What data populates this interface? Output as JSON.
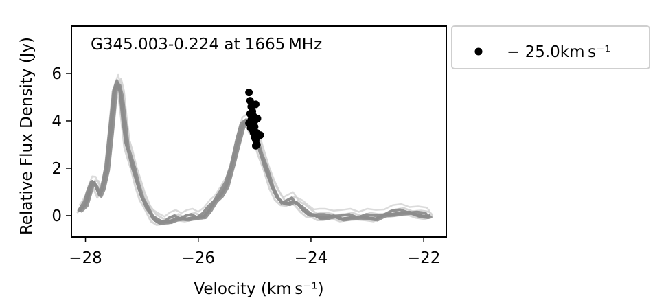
{
  "chart_data": {
    "type": "line",
    "title": "",
    "annotation": "G345.003-0.224 at 1665 MHz",
    "xlabel": "Velocity (km s⁻¹)",
    "ylabel": "Relative Flux Density (Jy)",
    "xlim": [
      -28.25,
      -21.6
    ],
    "ylim": [
      -0.9,
      8.0
    ],
    "xticks": [
      -28,
      -26,
      -24,
      -22
    ],
    "xtick_labels": [
      "−28",
      "−26",
      "−24",
      "−22"
    ],
    "yticks": [
      0,
      2,
      4,
      6
    ],
    "ytick_labels": [
      "0",
      "2",
      "4",
      "6"
    ],
    "grid": false,
    "legend": {
      "position": "outside-right-top",
      "entries": [
        "− 25.0km s⁻¹"
      ]
    },
    "line_color": "#8c8c8c",
    "light_line_color": "#d2d2d2",
    "point_color": "#000000",
    "spectrum": {
      "x": [
        -28.1,
        -28.0,
        -27.95,
        -27.88,
        -27.82,
        -27.75,
        -27.7,
        -27.62,
        -27.55,
        -27.48,
        -27.42,
        -27.37,
        -27.32,
        -27.27,
        -27.22,
        -27.15,
        -27.08,
        -27.0,
        -26.9,
        -26.8,
        -26.7,
        -26.6,
        -26.5,
        -26.4,
        -26.3,
        -26.2,
        -26.1,
        -26.0,
        -25.9,
        -25.8,
        -25.7,
        -25.6,
        -25.5,
        -25.4,
        -25.3,
        -25.22,
        -25.15,
        -25.1,
        -25.05,
        -25.0,
        -24.95,
        -24.9,
        -24.8,
        -24.7,
        -24.6,
        -24.5,
        -24.4,
        -24.32,
        -24.25,
        -24.15,
        -24.05,
        -23.95,
        -23.85,
        -23.75,
        -23.6,
        -23.45,
        -23.3,
        -23.15,
        -23.0,
        -22.85,
        -22.7,
        -22.55,
        -22.4,
        -22.25,
        -22.1,
        -21.95,
        -21.9
      ],
      "y": [
        0.2,
        0.5,
        0.9,
        1.4,
        1.3,
        0.9,
        1.1,
        2.0,
        3.6,
        5.3,
        5.6,
        5.1,
        4.0,
        3.0,
        2.6,
        2.0,
        1.4,
        0.8,
        0.3,
        -0.1,
        -0.25,
        -0.3,
        -0.2,
        -0.1,
        -0.15,
        -0.1,
        -0.05,
        -0.1,
        0.0,
        0.3,
        0.6,
        0.9,
        1.3,
        2.1,
        3.1,
        3.8,
        4.0,
        3.9,
        3.6,
        3.5,
        3.1,
        2.7,
        2.0,
        1.3,
        0.8,
        0.5,
        0.55,
        0.65,
        0.5,
        0.3,
        0.1,
        0.0,
        -0.05,
        -0.05,
        -0.05,
        -0.1,
        -0.05,
        -0.1,
        -0.05,
        -0.1,
        0.0,
        0.1,
        0.15,
        0.1,
        0.05,
        0.0,
        -0.05
      ]
    },
    "points": {
      "x": [
        -25.1,
        -25.08,
        -25.06,
        -25.04,
        -25.02,
        -25.0,
        -25.1,
        -25.07,
        -25.03,
        -24.98,
        -24.95,
        -25.05,
        -25.02,
        -25.0,
        -24.98,
        -24.96,
        -25.08,
        -25.04,
        -25.0,
        -24.97,
        -24.9,
        -24.98,
        -25.06
      ],
      "y": [
        5.2,
        4.85,
        4.6,
        4.4,
        4.2,
        4.0,
        3.9,
        3.7,
        3.6,
        4.7,
        4.1,
        3.8,
        3.5,
        3.3,
        3.2,
        3.0,
        4.3,
        3.95,
        3.75,
        3.5,
        3.4,
        2.95,
        4.05
      ]
    }
  }
}
